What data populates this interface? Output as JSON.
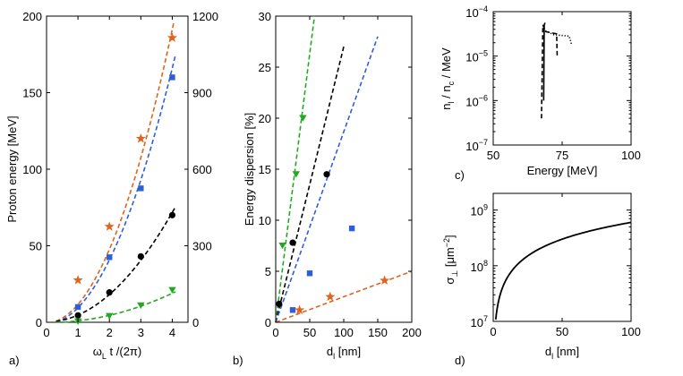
{
  "figure": {
    "panel_labels": [
      "a)",
      "b)",
      "c)",
      "d)"
    ]
  },
  "chart_data": [
    {
      "id": "a",
      "type": "scatter",
      "title": "",
      "xlabel": "ω_L t /(2π)",
      "xlabel_main": "ω",
      "xlabel_sub": "L",
      "xlabel_rest": " t /(2π)",
      "ylabel": "Proton energy [MeV]",
      "xlim": [
        0,
        4.5
      ],
      "ylim": [
        0,
        200
      ],
      "y2lim": [
        0,
        1200
      ],
      "xticks": [
        0,
        1,
        2,
        3,
        4
      ],
      "yticks": [
        0,
        50,
        100,
        150,
        200
      ],
      "y2ticks": [
        0,
        300,
        600,
        900,
        1200
      ],
      "series": [
        {
          "name": "orange stars",
          "axis": "right",
          "color": "#e0641e",
          "marker": "star",
          "x": [
            1,
            2,
            3,
            4
          ],
          "y": [
            165,
            375,
            720,
            1115
          ],
          "fit": {
            "x0": 0.3,
            "x1": 4.05,
            "coef": [
              -1.75,
              0,
              71.85
            ]
          }
        },
        {
          "name": "blue squares",
          "axis": "right",
          "color": "#2f5fd8",
          "marker": "square",
          "x": [
            1,
            2,
            3,
            4
          ],
          "y": [
            60,
            255,
            525,
            960
          ],
          "fit": {
            "x0": 0.3,
            "x1": 4.1,
            "coef": [
              -5.6,
              0,
              62.6
            ]
          }
        },
        {
          "name": "black circles",
          "axis": "left",
          "color": "#000000",
          "marker": "circle",
          "x": [
            1,
            2,
            3,
            4
          ],
          "y": [
            4.5,
            19.5,
            43,
            70
          ],
          "fit": {
            "x0": 0.3,
            "x1": 4.1,
            "coef": [
              0.25,
              0,
              4.47
            ]
          }
        },
        {
          "name": "green triangles",
          "axis": "left",
          "color": "#22a822",
          "marker": "triangle",
          "x": [
            1,
            2,
            3,
            4
          ],
          "y": [
            0.5,
            4,
            11,
            21
          ],
          "fit": {
            "x0": 0.3,
            "x1": 4.1,
            "coef": [
              -0.25,
              0,
              1.2
            ]
          }
        }
      ]
    },
    {
      "id": "b",
      "type": "scatter",
      "title": "",
      "xlabel": "d_l [nm]",
      "xlabel_main": "d",
      "xlabel_sub": "l",
      "xlabel_rest": " [nm]",
      "ylabel": "Energy dispersion [%]",
      "xlim": [
        0,
        200
      ],
      "ylim": [
        0,
        30
      ],
      "xticks": [
        0,
        50,
        100,
        150,
        200
      ],
      "yticks": [
        0,
        5,
        10,
        15,
        20,
        25,
        30
      ],
      "series": [
        {
          "name": "green triangles",
          "color": "#22a822",
          "marker": "triangle",
          "x": [
            10,
            30,
            40
          ],
          "y": [
            7.5,
            14.5,
            20
          ],
          "fit": {
            "x0": 0,
            "x1": 57,
            "y0": 0,
            "y1": 30
          }
        },
        {
          "name": "black circles",
          "color": "#000000",
          "marker": "circle",
          "x": [
            5,
            25,
            75
          ],
          "y": [
            1.8,
            7.8,
            14.5
          ],
          "fit": {
            "x0": 0,
            "x1": 100,
            "y0": 0,
            "y1": 27
          }
        },
        {
          "name": "blue squares",
          "color": "#2f5fd8",
          "marker": "square",
          "x": [
            25,
            50,
            112
          ],
          "y": [
            1.2,
            4.8,
            9.2
          ],
          "fit": {
            "x0": 0,
            "x1": 150,
            "y0": 0,
            "y1": 28
          }
        },
        {
          "name": "orange stars",
          "color": "#e0641e",
          "marker": "star",
          "x": [
            35,
            80,
            160
          ],
          "y": [
            1.2,
            2.5,
            4.1
          ],
          "fit": {
            "x0": 0,
            "x1": 200,
            "y0": 0,
            "y1": 5
          }
        }
      ]
    },
    {
      "id": "c",
      "type": "line",
      "title": "",
      "xlabel": "Energy [MeV]",
      "ylabel": "n_l / n_c / MeV",
      "ylabel_a": "n",
      "ylabel_asub": "l",
      "ylabel_b": " / n",
      "ylabel_bsub": "c",
      "ylabel_c": " / MeV",
      "xlim": [
        50,
        100
      ],
      "ylim_log10": [
        -7,
        -4
      ],
      "xticks": [
        50,
        75,
        100
      ],
      "yticks_exp": [
        -7,
        -6,
        -5,
        -4
      ],
      "ytick_base": "10",
      "series": [
        {
          "name": "solid",
          "style": "solid",
          "color": "#000000",
          "x": [
            68.3,
            68.5,
            68.8
          ],
          "y": [
            -6.0,
            -4.3,
            -4.25
          ]
        },
        {
          "name": "dashed",
          "style": "dashed",
          "color": "#000000",
          "x": [
            67.5,
            68.0,
            69.0,
            73.0,
            73.2
          ],
          "y": [
            -6.4,
            -4.3,
            -4.45,
            -4.5,
            -5.0
          ]
        },
        {
          "name": "dotted",
          "style": "dotted",
          "color": "#000000",
          "x": [
            68.0,
            72.0,
            77.5,
            78.5
          ],
          "y": [
            -4.4,
            -4.52,
            -4.55,
            -4.75
          ]
        }
      ]
    },
    {
      "id": "d",
      "type": "line",
      "title": "",
      "xlabel": "d_l [nm]",
      "xlabel_main": "d",
      "xlabel_sub": "l",
      "xlabel_rest": " [nm]",
      "ylabel": "σ_⊥ [μm^-2]",
      "ylabel_a": "σ",
      "ylabel_asub": "⊥",
      "ylabel_b": " [μm",
      "ylabel_bsup": "−2",
      "ylabel_c": "]",
      "xlim": [
        0,
        100
      ],
      "ylim_log10": [
        7,
        9.3
      ],
      "xticks": [
        0,
        50,
        100
      ],
      "yticks_exp": [
        7,
        8,
        9
      ],
      "ytick_base": "10",
      "series": [
        {
          "name": "sigma",
          "style": "solid",
          "color": "#000000",
          "formula": "6e6 * d",
          "x_range": [
            1.8,
            100
          ]
        }
      ]
    }
  ]
}
